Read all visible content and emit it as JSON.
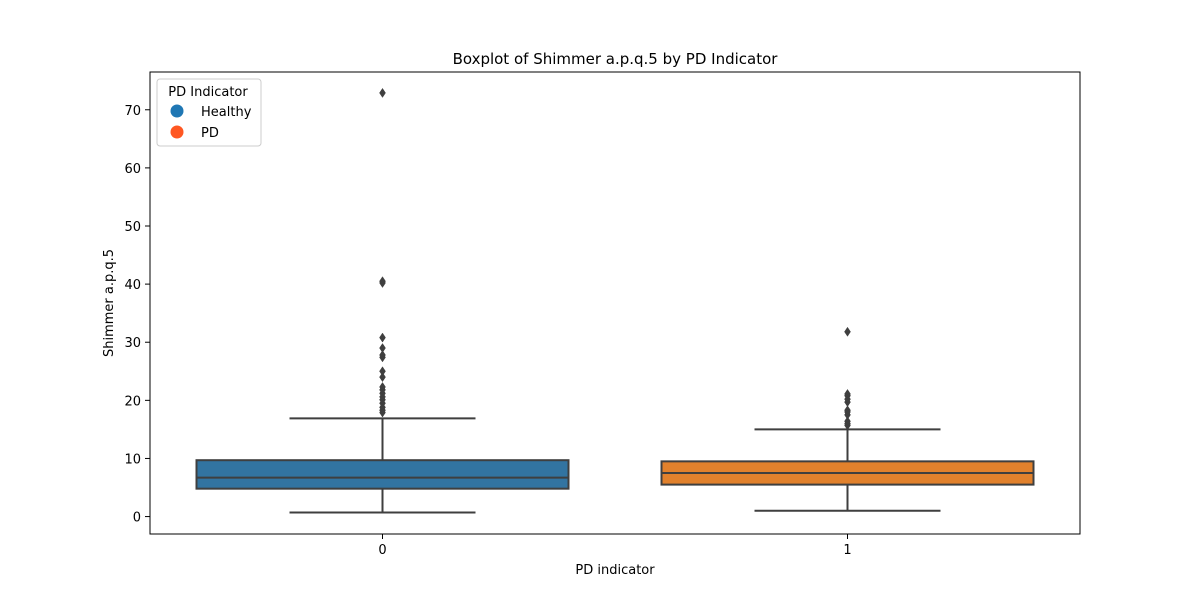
{
  "chart_data": {
    "type": "boxplot",
    "title": "Boxplot of Shimmer a.p.q.5 by PD Indicator",
    "xlabel": "PD indicator",
    "ylabel": "Shimmer a.p.q.5",
    "categories": [
      "0",
      "1"
    ],
    "ylim": [
      -3,
      76.5
    ],
    "yticks": [
      0,
      10,
      20,
      30,
      40,
      50,
      60,
      70
    ],
    "grid": false,
    "legend": {
      "title": "PD Indicator",
      "placement": "top-left",
      "entries": [
        {
          "label": "Healthy",
          "color": "#1f77b4"
        },
        {
          "label": "PD",
          "color": "#ff5722"
        }
      ]
    },
    "series": [
      {
        "category": "0",
        "color": "#3274a1",
        "whisker_low": 0.7,
        "q1": 4.8,
        "median": 6.7,
        "q3": 9.7,
        "whisker_high": 16.9,
        "outliers": [
          17.9,
          18.3,
          18.8,
          19.5,
          20.1,
          20.6,
          21.2,
          21.8,
          22.3,
          24.0,
          25.0,
          27.4,
          27.8,
          29.0,
          30.8,
          40.2,
          40.5,
          72.9
        ]
      },
      {
        "category": "1",
        "color": "#e1812c",
        "whisker_low": 1.0,
        "q1": 5.5,
        "median": 7.5,
        "q3": 9.5,
        "whisker_high": 15.0,
        "outliers": [
          15.7,
          16.0,
          16.4,
          17.5,
          18.0,
          18.3,
          19.7,
          20.2,
          20.8,
          21.1,
          31.8
        ]
      }
    ]
  }
}
